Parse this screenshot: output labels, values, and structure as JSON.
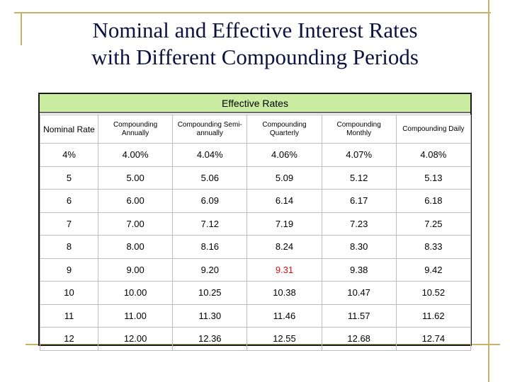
{
  "title": "Nominal and Effective Interest Rates\nwith Different Compounding Periods",
  "table": {
    "group_header": "Effective Rates",
    "columns": [
      "Nominal Rate",
      "Compounding Annually",
      "Compounding Semi-annually",
      "Compounding Quarterly",
      "Compounding Monthly",
      "Compounding Daily"
    ],
    "rows": [
      [
        "4%",
        "4.00%",
        "4.04%",
        "4.06%",
        "4.07%",
        "4.08%"
      ],
      [
        "5",
        "5.00",
        "5.06",
        "5.09",
        "5.12",
        "5.13"
      ],
      [
        "6",
        "6.00",
        "6.09",
        "6.14",
        "6.17",
        "6.18"
      ],
      [
        "7",
        "7.00",
        "7.12",
        "7.19",
        "7.23",
        "7.25"
      ],
      [
        "8",
        "8.00",
        "8.16",
        "8.24",
        "8.30",
        "8.33"
      ],
      [
        "9",
        "9.00",
        "9.20",
        "9.31",
        "9.38",
        "9.42"
      ],
      [
        "10",
        "10.00",
        "10.25",
        "10.38",
        "10.47",
        "10.52"
      ],
      [
        "11",
        "11.00",
        "11.30",
        "11.46",
        "11.57",
        "11.62"
      ],
      [
        "12",
        "12.00",
        "12.36",
        "12.55",
        "12.68",
        "12.74"
      ]
    ],
    "highlight_color": "#d01010",
    "highlight_cell": {
      "row": 5,
      "col": 3
    }
  },
  "colors": {
    "title": "#0c1240",
    "header_fill": "#c9eca1",
    "frame": "#c8b466"
  }
}
